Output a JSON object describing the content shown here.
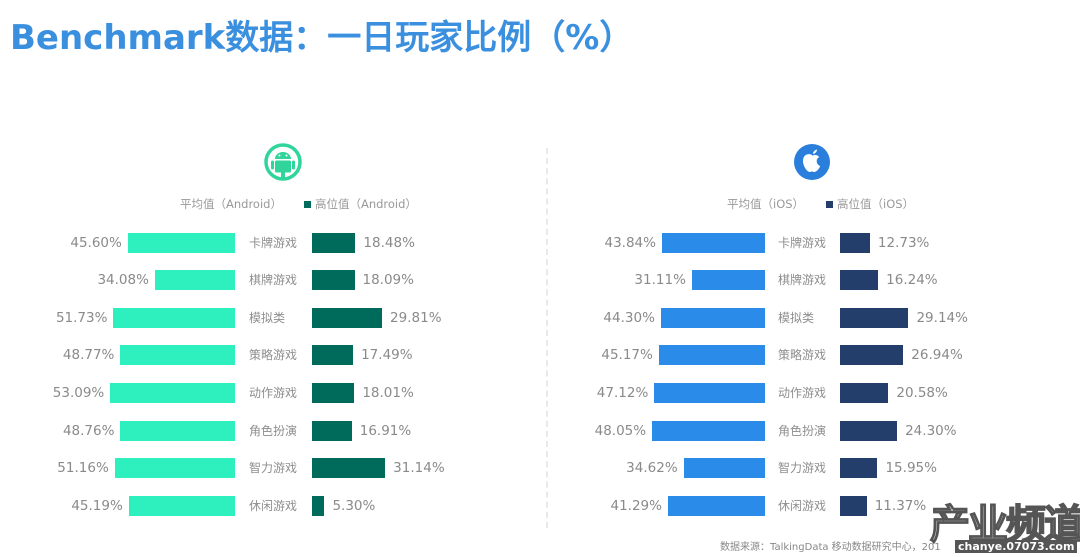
{
  "title": "Benchmark数据：一日玩家比例（%）",
  "colors": {
    "title": "#3a8fde",
    "android_avg": "#2ef0bf",
    "android_high": "#006b5b",
    "ios_avg": "#2a8ce8",
    "ios_high": "#243e6c",
    "android_icon": "#2fd59a",
    "ios_icon": "#2a7fdc"
  },
  "android": {
    "icon": "android-icon",
    "legend": {
      "avg_label": "平均值（Android）",
      "high_label": "高位值（Android）"
    }
  },
  "ios": {
    "icon": "apple-icon",
    "legend": {
      "avg_label": "平均值（iOS）",
      "high_label": "高位值（iOS）"
    }
  },
  "chart_data": [
    {
      "type": "bar",
      "title": "Android",
      "orientation": "horizontal-butterfly",
      "categories": [
        "卡牌游戏",
        "棋牌游戏",
        "模拟类",
        "策略游戏",
        "动作游戏",
        "角色扮演",
        "智力游戏",
        "休闲游戏"
      ],
      "series": [
        {
          "name": "平均值（Android）",
          "values": [
            45.6,
            34.08,
            51.73,
            48.77,
            53.09,
            48.76,
            51.16,
            45.19
          ],
          "labels": [
            "45.60%",
            "34.08%",
            "51.73%",
            "48.77%",
            "53.09%",
            "48.76%",
            "51.16%",
            "45.19%"
          ]
        },
        {
          "name": "高位值（Android）",
          "values": [
            18.48,
            18.09,
            29.81,
            17.49,
            18.01,
            16.91,
            31.14,
            5.3
          ],
          "labels": [
            "18.48%",
            "18.09%",
            "29.81%",
            "17.49%",
            "18.01%",
            "16.91%",
            "31.14%",
            "5.30%"
          ]
        }
      ],
      "unit": "%",
      "legend_position": "top",
      "grid": false
    },
    {
      "type": "bar",
      "title": "iOS",
      "orientation": "horizontal-butterfly",
      "categories": [
        "卡牌游戏",
        "棋牌游戏",
        "模拟类",
        "策略游戏",
        "动作游戏",
        "角色扮演",
        "智力游戏",
        "休闲游戏"
      ],
      "series": [
        {
          "name": "平均值（iOS）",
          "values": [
            43.84,
            31.11,
            44.3,
            45.17,
            47.12,
            48.05,
            34.62,
            41.29
          ],
          "labels": [
            "43.84%",
            "31.11%",
            "44.30%",
            "45.17%",
            "47.12%",
            "48.05%",
            "34.62%",
            "41.29%"
          ]
        },
        {
          "name": "高位值（iOS）",
          "values": [
            12.73,
            16.24,
            29.14,
            26.94,
            20.58,
            24.3,
            15.95,
            11.37
          ],
          "labels": [
            "12.73%",
            "16.24%",
            "29.14%",
            "26.94%",
            "20.58%",
            "24.30%",
            "15.95%",
            "11.37%"
          ]
        }
      ],
      "unit": "%",
      "legend_position": "top",
      "grid": false
    }
  ],
  "footer": {
    "source": "数据来源：TalkingData 移动数据研究中心，201",
    "watermark": "产业频道",
    "watermark_sub": "chanye.07073.com"
  }
}
